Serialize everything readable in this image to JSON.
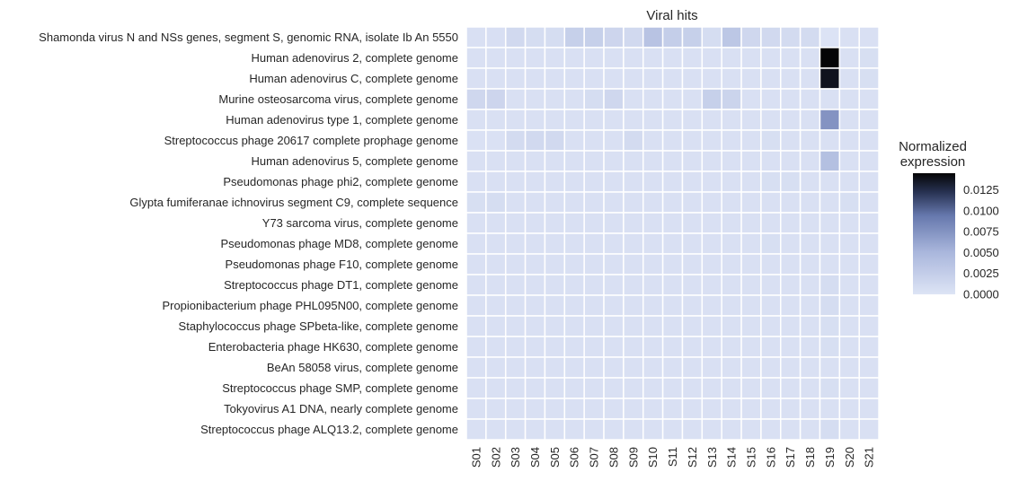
{
  "chart_data": {
    "type": "heatmap",
    "title": "Viral hits",
    "colorbar_title_lines": [
      "Normalized",
      "expression"
    ],
    "colorbar_ticks": [
      {
        "value": 0.0,
        "label": "0.0000"
      },
      {
        "value": 0.0025,
        "label": "0.0025"
      },
      {
        "value": 0.005,
        "label": "0.0050"
      },
      {
        "value": 0.0075,
        "label": "0.0075"
      },
      {
        "value": 0.01,
        "label": "0.0100"
      },
      {
        "value": 0.0125,
        "label": "0.0125"
      }
    ],
    "vmin": 0,
    "vmax": 0.0145,
    "colors": {
      "low": "#dde4f5",
      "mid": "#7a8ec4",
      "high": "#050506",
      "grid": "#ffffff"
    },
    "columns": [
      "S01",
      "S02",
      "S03",
      "S04",
      "S05",
      "S06",
      "S07",
      "S08",
      "S09",
      "S10",
      "S11",
      "S12",
      "S13",
      "S14",
      "S15",
      "S16",
      "S17",
      "S18",
      "S19",
      "S20",
      "S21"
    ],
    "rows": [
      "Shamonda virus N and NSs genes, segment S, genomic RNA, isolate Ib An 5550",
      "Human adenovirus 2, complete genome",
      "Human adenovirus C, complete genome",
      "Murine osteosarcoma virus, complete genome",
      "Human adenovirus type 1, complete genome",
      "Streptococcus phage 20617 complete prophage genome",
      "Human adenovirus 5, complete genome",
      "Pseudomonas phage phi2, complete genome",
      "Glypta fumiferanae ichnovirus segment C9, complete sequence",
      "Y73 sarcoma virus, complete genome",
      "Pseudomonas phage MD8, complete genome",
      "Pseudomonas phage F10, complete genome",
      "Streptococcus phage DT1, complete genome",
      "Propionibacterium phage PHL095N00, complete genome",
      "Staphylococcus phage SPbeta-like, complete genome",
      "Enterobacteria phage HK630, complete genome",
      "BeAn 58058 virus, complete genome",
      "Streptococcus phage SMP, complete genome",
      "Tokyovirus A1 DNA, nearly complete genome",
      "Streptococcus phage ALQ13.2, complete genome"
    ],
    "values": [
      [
        0.0004,
        0.0005,
        0.0012,
        0.0008,
        0.0008,
        0.0022,
        0.0022,
        0.0016,
        0.0012,
        0.0036,
        0.0024,
        0.0022,
        0.0008,
        0.0032,
        0.0014,
        0.0012,
        0.001,
        0.001,
        0.0001,
        0.0004,
        0.0004
      ],
      [
        0.0004,
        0.0004,
        0.0004,
        0.0004,
        0.0004,
        0.0004,
        0.0004,
        0.0004,
        0.0004,
        0.0004,
        0.0004,
        0.0004,
        0.0004,
        0.0004,
        0.0004,
        0.0004,
        0.0004,
        0.0004,
        0.0145,
        0.0004,
        0.0006
      ],
      [
        0.0004,
        0.0004,
        0.0004,
        0.0004,
        0.0004,
        0.0004,
        0.0004,
        0.0004,
        0.0004,
        0.0004,
        0.0004,
        0.0004,
        0.0004,
        0.0004,
        0.0004,
        0.0004,
        0.0004,
        0.0004,
        0.0138,
        0.0004,
        0.0006
      ],
      [
        0.0014,
        0.0016,
        0.0004,
        0.0004,
        0.0004,
        0.0004,
        0.0008,
        0.0014,
        0.0004,
        0.0004,
        0.0004,
        0.0004,
        0.0022,
        0.0018,
        0.0004,
        0.0004,
        0.0004,
        0.0004,
        0.0004,
        0.0004,
        0.0004
      ],
      [
        0.0004,
        0.0004,
        0.0004,
        0.0004,
        0.0004,
        0.0004,
        0.0004,
        0.0004,
        0.0004,
        0.0004,
        0.0004,
        0.0004,
        0.0004,
        0.0004,
        0.0004,
        0.0004,
        0.0004,
        0.0004,
        0.0075,
        0.0004,
        0.0004
      ],
      [
        0.0003,
        0.0003,
        0.001,
        0.0012,
        0.0012,
        0.0004,
        0.0004,
        0.0004,
        0.001,
        0.0004,
        0.0004,
        0.0004,
        0.0004,
        0.0004,
        0.0004,
        0.0006,
        0.0004,
        0.0004,
        0.0004,
        0.0004,
        0.0004
      ],
      [
        0.0004,
        0.0004,
        0.0004,
        0.0004,
        0.0004,
        0.0004,
        0.0004,
        0.0004,
        0.0004,
        0.0004,
        0.0004,
        0.0004,
        0.0004,
        0.0004,
        0.0004,
        0.0004,
        0.0004,
        0.0004,
        0.004,
        0.0004,
        0.0004
      ],
      [
        0.0004,
        0.0004,
        0.0004,
        0.0004,
        0.0004,
        0.0004,
        0.0004,
        0.0004,
        0.0004,
        0.0004,
        0.0004,
        0.0004,
        0.0004,
        0.0004,
        0.0004,
        0.0006,
        0.0006,
        0.0004,
        0.0004,
        0.0004,
        0.0004
      ],
      [
        0.0006,
        0.0008,
        0.0004,
        0.0004,
        0.0004,
        0.0004,
        0.0004,
        0.0004,
        0.0004,
        0.0004,
        0.0004,
        0.0004,
        0.0004,
        0.0004,
        0.0004,
        0.0004,
        0.0004,
        0.0004,
        0.0004,
        0.0006,
        0.0004
      ],
      [
        0.0004,
        0.0004,
        0.0004,
        0.0004,
        0.0004,
        0.0004,
        0.0004,
        0.0004,
        0.0004,
        0.0004,
        0.0004,
        0.0004,
        0.0004,
        0.0004,
        0.0004,
        0.0004,
        0.0004,
        0.0004,
        0.0004,
        0.0004,
        0.0004
      ],
      [
        0.0004,
        0.0004,
        0.0004,
        0.0004,
        0.0004,
        0.0004,
        0.0004,
        0.0004,
        0.0004,
        0.0004,
        0.0004,
        0.0004,
        0.0004,
        0.0004,
        0.0004,
        0.0006,
        0.0004,
        0.0004,
        0.0004,
        0.0004,
        0.0004
      ],
      [
        0.0004,
        0.0004,
        0.0004,
        0.0004,
        0.0004,
        0.0004,
        0.0004,
        0.0004,
        0.0004,
        0.0004,
        0.0004,
        0.0004,
        0.0004,
        0.0004,
        0.0004,
        0.0004,
        0.0004,
        0.0004,
        0.0004,
        0.0004,
        0.0004
      ],
      [
        0.0004,
        0.0004,
        0.0004,
        0.0004,
        0.0004,
        0.0004,
        0.0004,
        0.0004,
        0.0004,
        0.0004,
        0.0004,
        0.0004,
        0.0004,
        0.0004,
        0.0004,
        0.0004,
        0.0004,
        0.0004,
        0.0008,
        0.0004,
        0.0004
      ],
      [
        0.0004,
        0.0004,
        0.0004,
        0.0004,
        0.0004,
        0.0004,
        0.0004,
        0.0004,
        0.0004,
        0.0004,
        0.0004,
        0.0004,
        0.0004,
        0.0004,
        0.0004,
        0.0004,
        0.0004,
        0.0004,
        0.0008,
        0.0004,
        0.0004
      ],
      [
        0.0004,
        0.0004,
        0.0004,
        0.0004,
        0.0004,
        0.0004,
        0.0004,
        0.0004,
        0.0004,
        0.0004,
        0.0004,
        0.0004,
        0.0004,
        0.0004,
        0.0004,
        0.0004,
        0.0004,
        0.0004,
        0.0006,
        0.0004,
        0.0004
      ],
      [
        0.0004,
        0.0004,
        0.0004,
        0.0004,
        0.0004,
        0.0004,
        0.0004,
        0.0004,
        0.0004,
        0.0004,
        0.0004,
        0.0004,
        0.0004,
        0.0004,
        0.0004,
        0.0004,
        0.0004,
        0.0004,
        0.0006,
        0.0004,
        0.0004
      ],
      [
        0.0004,
        0.0004,
        0.0004,
        0.0004,
        0.0004,
        0.0004,
        0.0004,
        0.0004,
        0.0004,
        0.0004,
        0.0004,
        0.0004,
        0.0004,
        0.0004,
        0.0004,
        0.0004,
        0.0004,
        0.0004,
        0.0004,
        0.0004,
        0.0004
      ],
      [
        0.0004,
        0.0004,
        0.0004,
        0.0004,
        0.0004,
        0.0004,
        0.0004,
        0.0004,
        0.0004,
        0.0004,
        0.0004,
        0.0004,
        0.0004,
        0.0004,
        0.0004,
        0.0004,
        0.0004,
        0.0004,
        0.0006,
        0.0004,
        0.0004
      ],
      [
        0.0004,
        0.0004,
        0.0004,
        0.0004,
        0.0004,
        0.0004,
        0.0004,
        0.0004,
        0.0004,
        0.0004,
        0.0004,
        0.0004,
        0.0004,
        0.0004,
        0.0004,
        0.0004,
        0.0004,
        0.0004,
        0.0004,
        0.0004,
        0.0004
      ],
      [
        0.0004,
        0.0004,
        0.0004,
        0.0004,
        0.0004,
        0.0004,
        0.0004,
        0.0004,
        0.0004,
        0.0004,
        0.0004,
        0.0004,
        0.0004,
        0.0004,
        0.0004,
        0.0004,
        0.0004,
        0.0004,
        0.0008,
        0.0004,
        0.0004
      ]
    ],
    "grid": true,
    "legend_placement": "right"
  }
}
